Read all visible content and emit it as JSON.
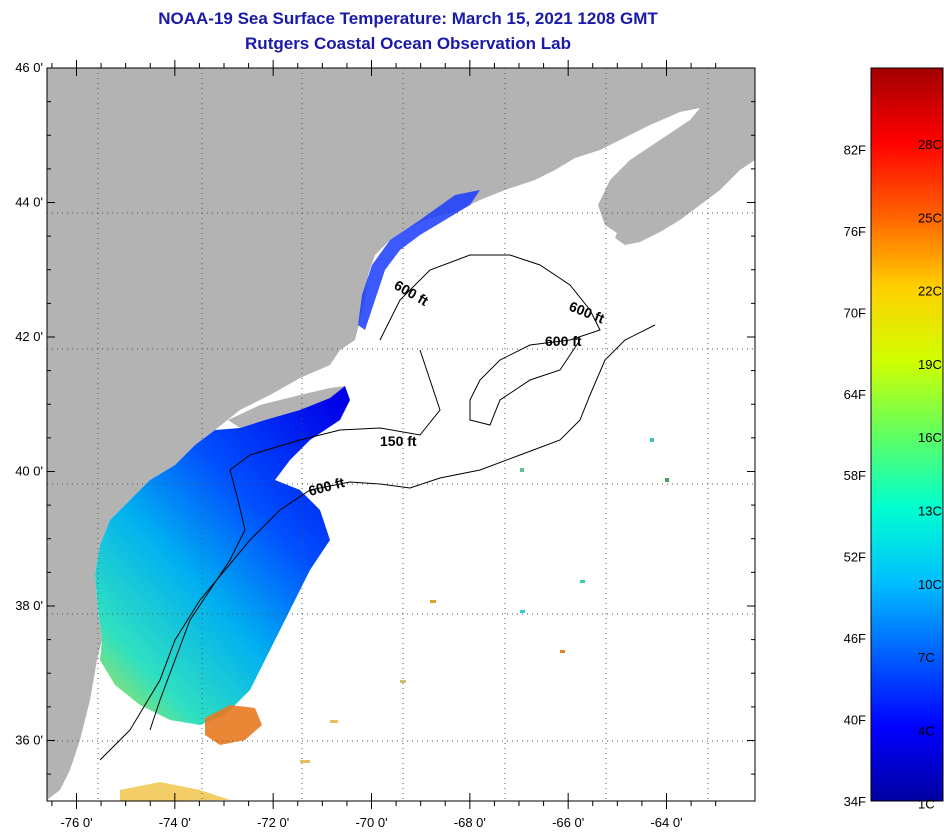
{
  "header": {
    "title": "NOAA-19 Sea Surface Temperature:  March 15, 2021 1208 GMT",
    "subtitle": "Rutgers Coastal Ocean Observation Lab"
  },
  "map": {
    "lat_ticks": [
      {
        "value": 46,
        "label": "46 0'"
      },
      {
        "value": 44,
        "label": "44 0'"
      },
      {
        "value": 42,
        "label": "42 0'"
      },
      {
        "value": 40,
        "label": "40 0'"
      },
      {
        "value": 38,
        "label": "38 0'"
      },
      {
        "value": 36,
        "label": "36 0'"
      }
    ],
    "lon_ticks": [
      {
        "value": -76,
        "label": "-76 0'"
      },
      {
        "value": -74,
        "label": "-74 0'"
      },
      {
        "value": -72,
        "label": "-72 0'"
      },
      {
        "value": -70,
        "label": "-70 0'"
      },
      {
        "value": -68,
        "label": "-68 0'"
      },
      {
        "value": -66,
        "label": "-66 0'"
      },
      {
        "value": -64,
        "label": "-64 0'"
      }
    ],
    "lon_range": [
      -76.6,
      -62.2
    ],
    "lat_range": [
      35.1,
      46.0
    ],
    "contour_labels": [
      "600 ft",
      "600 ft",
      "600 ft",
      "150 ft",
      "600 ft"
    ],
    "land_color": "#b3b3b3",
    "ocean_no_data_color": "#ffffff"
  },
  "colorbar": {
    "fahrenheit": [
      "82F",
      "76F",
      "70F",
      "64F",
      "58F",
      "52F",
      "46F",
      "40F",
      "34F"
    ],
    "celsius": [
      "28C",
      "25C",
      "22C",
      "19C",
      "16C",
      "13C",
      "10C",
      "7C",
      "4C",
      "1C"
    ],
    "colors": [
      "#0000a0",
      "#0000ff",
      "#0060ff",
      "#00c0ff",
      "#00ffd0",
      "#60ff60",
      "#d0ff00",
      "#ffd000",
      "#ff6000",
      "#ff0000",
      "#a00000"
    ]
  }
}
